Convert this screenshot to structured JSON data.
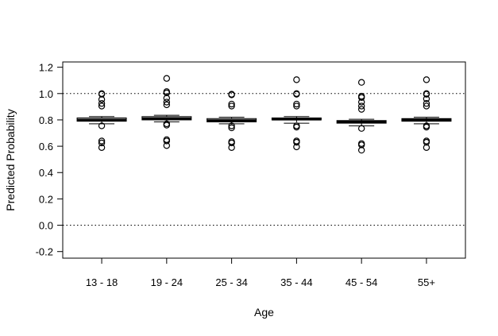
{
  "chart_data": {
    "type": "boxplot",
    "title": "",
    "xlabel": "Age",
    "ylabel": "Predicted Probability",
    "ylim": [
      -0.25,
      1.24
    ],
    "yticks": [
      -0.2,
      0.0,
      0.2,
      0.4,
      0.6,
      0.8,
      1.0,
      1.2
    ],
    "ytick_labels": [
      "-0.2",
      "0.0",
      "0.2",
      "0.4",
      "0.6",
      "0.8",
      "1.0",
      "1.2"
    ],
    "reference_lines": [
      0.0,
      1.0
    ],
    "grid": false,
    "categories": [
      "13 - 18",
      "19 - 24",
      "25 - 34",
      "35 - 44",
      "45 - 54",
      "55+"
    ],
    "boxes": [
      {
        "category": "13 - 18",
        "lower_whisker": 0.77,
        "q1": 0.79,
        "median": 0.8,
        "q3": 0.815,
        "upper_whisker": 0.825,
        "outliers": [
          0.59,
          0.625,
          0.64,
          0.755,
          0.905,
          0.925,
          0.955,
          0.995,
          1.0
        ]
      },
      {
        "category": "19 - 24",
        "lower_whisker": 0.785,
        "q1": 0.8,
        "median": 0.81,
        "q3": 0.825,
        "upper_whisker": 0.835,
        "outliers": [
          0.605,
          0.64,
          0.65,
          0.76,
          0.77,
          0.915,
          0.935,
          0.965,
          1.005,
          1.015,
          1.115
        ]
      },
      {
        "category": "25 - 34",
        "lower_whisker": 0.77,
        "q1": 0.785,
        "median": 0.795,
        "q3": 0.81,
        "upper_whisker": 0.82,
        "outliers": [
          0.59,
          0.625,
          0.635,
          0.74,
          0.755,
          0.905,
          0.92,
          0.99,
          0.995
        ]
      },
      {
        "category": "35 - 44",
        "lower_whisker": 0.775,
        "q1": 0.8,
        "median": 0.805,
        "q3": 0.815,
        "upper_whisker": 0.825,
        "outliers": [
          0.595,
          0.63,
          0.64,
          0.745,
          0.755,
          0.905,
          0.92,
          0.995,
          1.0,
          1.105
        ]
      },
      {
        "category": "45 - 54",
        "lower_whisker": 0.755,
        "q1": 0.775,
        "median": 0.785,
        "q3": 0.795,
        "upper_whisker": 0.805,
        "outliers": [
          0.57,
          0.61,
          0.62,
          0.735,
          0.88,
          0.905,
          0.935,
          0.97,
          0.98,
          1.085
        ]
      },
      {
        "category": "55+",
        "lower_whisker": 0.77,
        "q1": 0.79,
        "median": 0.8,
        "q3": 0.81,
        "upper_whisker": 0.82,
        "outliers": [
          0.59,
          0.63,
          0.64,
          0.745,
          0.755,
          0.905,
          0.925,
          0.96,
          0.995,
          1.0,
          1.105
        ]
      }
    ]
  }
}
